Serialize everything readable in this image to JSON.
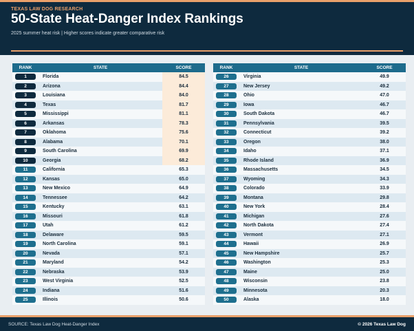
{
  "header": {
    "kicker": "TEXAS LAW DOG RESEARCH",
    "title": "50-State Heat-Danger Index Rankings",
    "subtitle": "2025 summer heat risk | Higher scores indicate greater comparative risk"
  },
  "table": {
    "columns": {
      "rank": "RANK",
      "state": "STATE",
      "score": "SCORE"
    },
    "rows": [
      {
        "rank": "1",
        "state": "Florida",
        "score": "84.5"
      },
      {
        "rank": "2",
        "state": "Arizona",
        "score": "84.4"
      },
      {
        "rank": "3",
        "state": "Louisiana",
        "score": "84.0"
      },
      {
        "rank": "4",
        "state": "Texas",
        "score": "81.7"
      },
      {
        "rank": "5",
        "state": "Mississippi",
        "score": "81.1"
      },
      {
        "rank": "6",
        "state": "Arkansas",
        "score": "78.3"
      },
      {
        "rank": "7",
        "state": "Oklahoma",
        "score": "75.6"
      },
      {
        "rank": "8",
        "state": "Alabama",
        "score": "70.1"
      },
      {
        "rank": "9",
        "state": "South Carolina",
        "score": "69.9"
      },
      {
        "rank": "10",
        "state": "Georgia",
        "score": "68.2"
      },
      {
        "rank": "11",
        "state": "California",
        "score": "65.3"
      },
      {
        "rank": "12",
        "state": "Kansas",
        "score": "65.0"
      },
      {
        "rank": "13",
        "state": "New Mexico",
        "score": "64.9"
      },
      {
        "rank": "14",
        "state": "Tennessee",
        "score": "64.2"
      },
      {
        "rank": "15",
        "state": "Kentucky",
        "score": "63.1"
      },
      {
        "rank": "16",
        "state": "Missouri",
        "score": "61.8"
      },
      {
        "rank": "17",
        "state": "Utah",
        "score": "61.2"
      },
      {
        "rank": "18",
        "state": "Delaware",
        "score": "59.5"
      },
      {
        "rank": "19",
        "state": "North Carolina",
        "score": "59.1"
      },
      {
        "rank": "20",
        "state": "Nevada",
        "score": "57.1"
      },
      {
        "rank": "21",
        "state": "Maryland",
        "score": "54.2"
      },
      {
        "rank": "22",
        "state": "Nebraska",
        "score": "53.9"
      },
      {
        "rank": "23",
        "state": "West Virginia",
        "score": "52.5"
      },
      {
        "rank": "24",
        "state": "Indiana",
        "score": "51.6"
      },
      {
        "rank": "25",
        "state": "Illinois",
        "score": "50.6"
      },
      {
        "rank": "26",
        "state": "Virginia",
        "score": "49.9"
      },
      {
        "rank": "27",
        "state": "New Jersey",
        "score": "49.2"
      },
      {
        "rank": "28",
        "state": "Ohio",
        "score": "47.0"
      },
      {
        "rank": "29",
        "state": "Iowa",
        "score": "46.7"
      },
      {
        "rank": "30",
        "state": "South Dakota",
        "score": "46.7"
      },
      {
        "rank": "31",
        "state": "Pennsylvania",
        "score": "39.5"
      },
      {
        "rank": "32",
        "state": "Connecticut",
        "score": "39.2"
      },
      {
        "rank": "33",
        "state": "Oregon",
        "score": "38.0"
      },
      {
        "rank": "34",
        "state": "Idaho",
        "score": "37.1"
      },
      {
        "rank": "35",
        "state": "Rhode Island",
        "score": "36.9"
      },
      {
        "rank": "36",
        "state": "Massachusetts",
        "score": "34.5"
      },
      {
        "rank": "37",
        "state": "Wyoming",
        "score": "34.3"
      },
      {
        "rank": "38",
        "state": "Colorado",
        "score": "33.9"
      },
      {
        "rank": "39",
        "state": "Montana",
        "score": "29.8"
      },
      {
        "rank": "40",
        "state": "New York",
        "score": "28.4"
      },
      {
        "rank": "41",
        "state": "Michigan",
        "score": "27.6"
      },
      {
        "rank": "42",
        "state": "North Dakota",
        "score": "27.4"
      },
      {
        "rank": "43",
        "state": "Vermont",
        "score": "27.1"
      },
      {
        "rank": "44",
        "state": "Hawaii",
        "score": "26.9"
      },
      {
        "rank": "45",
        "state": "New Hampshire",
        "score": "25.7"
      },
      {
        "rank": "46",
        "state": "Washington",
        "score": "25.3"
      },
      {
        "rank": "47",
        "state": "Maine",
        "score": "25.0"
      },
      {
        "rank": "48",
        "state": "Wisconsin",
        "score": "23.8"
      },
      {
        "rank": "49",
        "state": "Minnesota",
        "score": "20.3"
      },
      {
        "rank": "50",
        "state": "Alaska",
        "score": "18.0"
      }
    ]
  },
  "footer": {
    "source": "SOURCE: Texas Law Dog Heat-Danger Index",
    "copyright": "© 2026 Texas Law Dog"
  },
  "colors": {
    "navy": "#0e2a3e",
    "teal": "#1d6b8c",
    "accent_orange": "#e9a06a",
    "top10_score_highlight": "#fcebd9"
  }
}
